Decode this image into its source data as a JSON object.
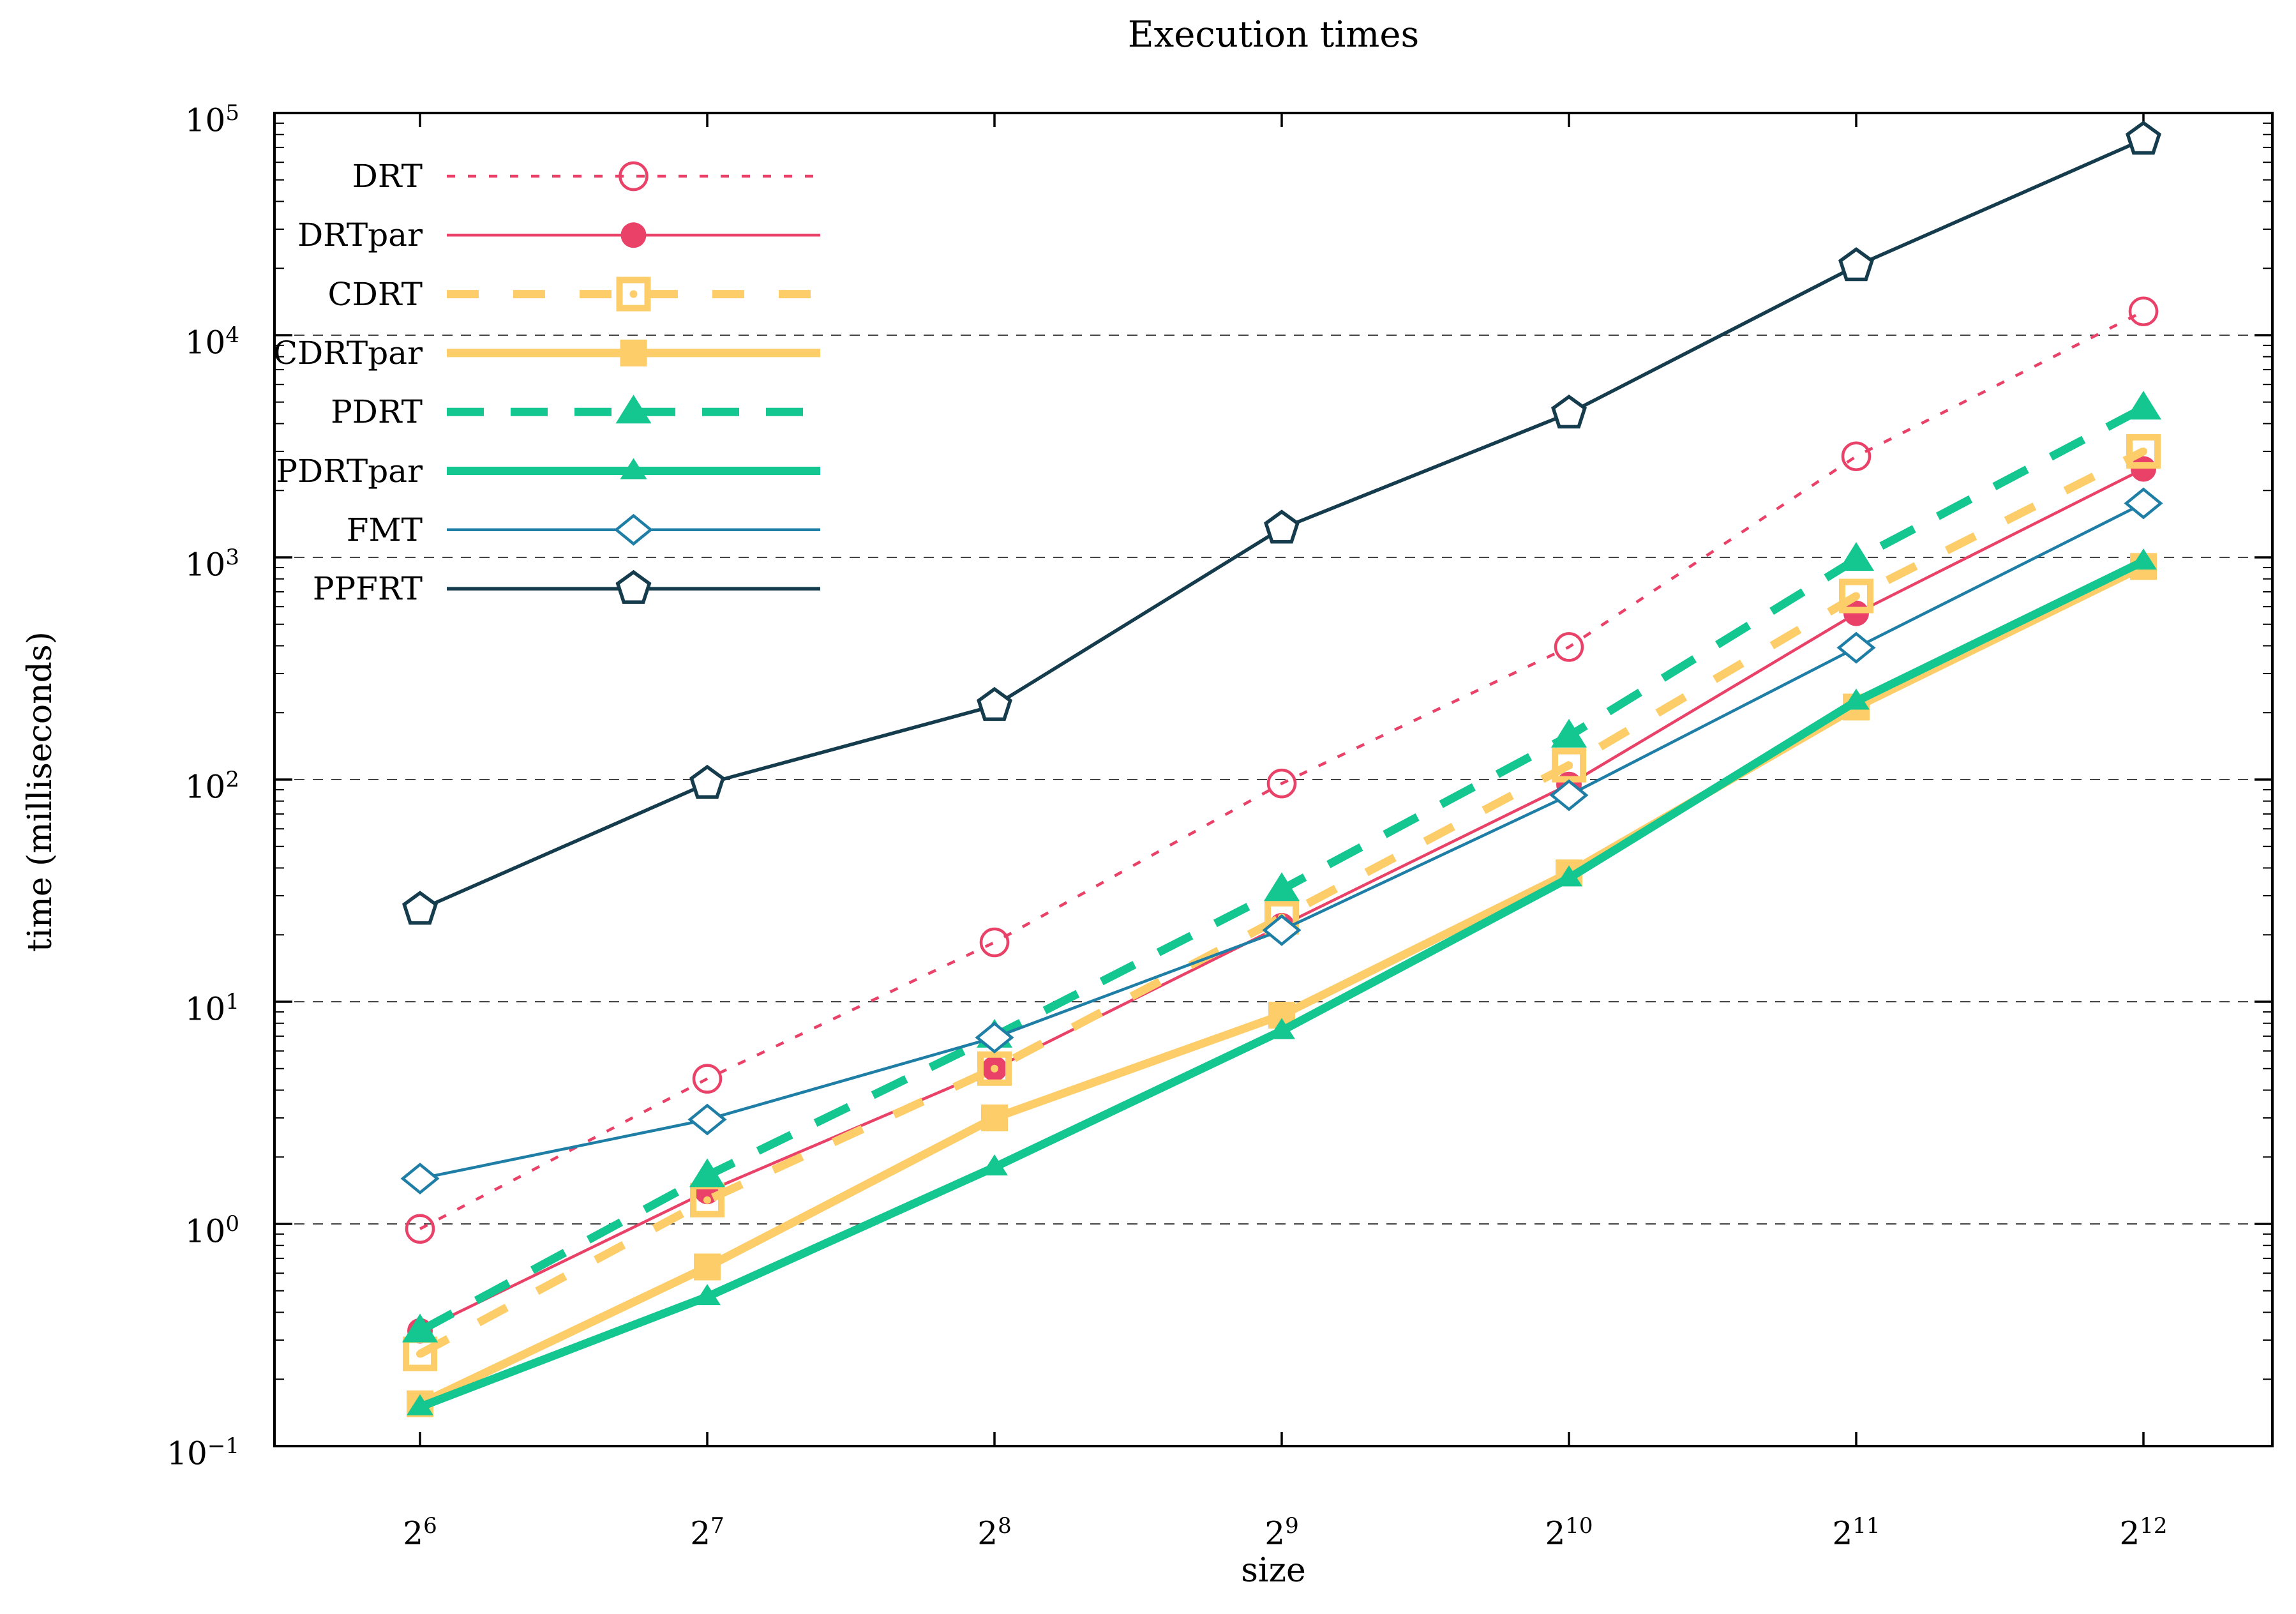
{
  "chart_data": {
    "type": "line",
    "title": "Execution times",
    "xlabel": "size",
    "ylabel": "time (milliseconds)",
    "x_scale": "log2",
    "y_scale": "log10",
    "x_tick_base": 2,
    "x_tick_exponents": [
      6,
      7,
      8,
      9,
      10,
      11,
      12
    ],
    "y_tick_base": 10,
    "y_tick_exponents": [
      -1,
      0,
      1,
      2,
      3,
      4,
      5
    ],
    "ylim": [
      0.1,
      100000
    ],
    "grid": "dashed horizontal lines at each decade",
    "grid_decades": [
      1,
      10,
      100,
      1000,
      10000
    ],
    "grid_color": "#444444",
    "background": "#ffffff",
    "legend_position": "top-left",
    "x": [
      64,
      128,
      256,
      512,
      1024,
      2048,
      4096
    ],
    "series": [
      {
        "name": "DRT",
        "color": "#e94168",
        "line": "dashed",
        "thickness": "thin",
        "marker": "circle-open",
        "values": [
          0.95,
          4.5,
          18.5,
          96,
          395,
          2850,
          12800
        ]
      },
      {
        "name": "DRTpar",
        "color": "#e94168",
        "line": "solid",
        "thickness": "thin",
        "marker": "circle-filled",
        "values": [
          0.33,
          1.4,
          5.0,
          22,
          95,
          560,
          2500
        ]
      },
      {
        "name": "CDRT",
        "color": "#fccd68",
        "line": "dashed",
        "thickness": "thick",
        "marker": "square-open",
        "values": [
          0.26,
          1.28,
          5.0,
          24,
          116,
          670,
          3000
        ]
      },
      {
        "name": "CDRTpar",
        "color": "#fccd68",
        "line": "solid",
        "thickness": "thick",
        "marker": "square-filled",
        "values": [
          0.155,
          0.64,
          3.0,
          8.7,
          38,
          212,
          910
        ]
      },
      {
        "name": "PDRT",
        "color": "#14c68f",
        "line": "dashed",
        "thickness": "thick",
        "marker": "triangle-filled-large",
        "values": [
          0.33,
          1.65,
          7.0,
          32,
          157,
          980,
          4700
        ]
      },
      {
        "name": "PDRTpar",
        "color": "#14c68f",
        "line": "solid",
        "thickness": "thick",
        "marker": "triangle-filled-small",
        "values": [
          0.15,
          0.47,
          1.8,
          7.4,
          36,
          225,
          960
        ]
      },
      {
        "name": "FMT",
        "color": "#1e7ea6",
        "line": "solid",
        "thickness": "thin",
        "marker": "diamond-open",
        "values": [
          1.6,
          2.95,
          6.9,
          21,
          85,
          392,
          1750
        ]
      },
      {
        "name": "PPFRT",
        "color": "#153c4d",
        "line": "solid",
        "thickness": "thin",
        "marker": "pentagon-open",
        "values": [
          26,
          96,
          215,
          1350,
          4450,
          20500,
          76000
        ]
      }
    ]
  }
}
